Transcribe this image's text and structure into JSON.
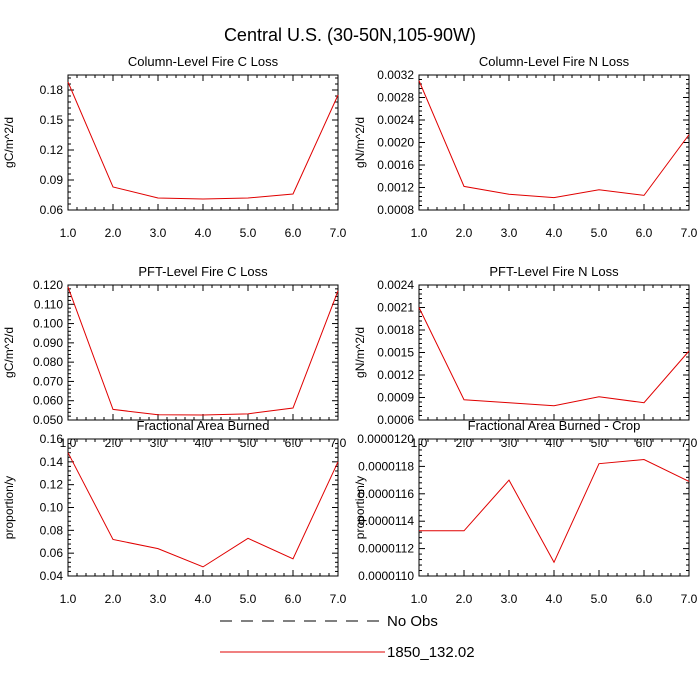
{
  "title": "Central U.S. (30-50N,105-90W)",
  "legend": [
    {
      "label": "No Obs",
      "style": "dashed",
      "color": "#000000"
    },
    {
      "label": "1850_132.02",
      "style": "solid",
      "color": "#e00000"
    }
  ],
  "chart_data": [
    {
      "type": "line",
      "title": "Column-Level Fire C Loss",
      "ylabel": "gC/m^2/d",
      "xlim": [
        1,
        7
      ],
      "ylim": [
        0.06,
        0.195
      ],
      "xticks": [
        "1.0",
        "2.0",
        "3.0",
        "4.0",
        "5.0",
        "6.0",
        "7.0"
      ],
      "yticks": [
        "0.06",
        "0.09",
        "0.12",
        "0.15",
        "0.18"
      ],
      "series": [
        {
          "color": "#e00000",
          "x": [
            1,
            2,
            3,
            4,
            5,
            6,
            7
          ],
          "y": [
            0.188,
            0.083,
            0.072,
            0.071,
            0.072,
            0.076,
            0.175
          ]
        }
      ]
    },
    {
      "type": "line",
      "title": "Column-Level Fire N Loss",
      "ylabel": "gN/m^2/d",
      "xlim": [
        1,
        7
      ],
      "ylim": [
        0.0008,
        0.0032
      ],
      "xticks": [
        "1.0",
        "2.0",
        "3.0",
        "4.0",
        "5.0",
        "6.0",
        "7.0"
      ],
      "yticks": [
        "0.0008",
        "0.0012",
        "0.0016",
        "0.0020",
        "0.0024",
        "0.0028",
        "0.0032"
      ],
      "series": [
        {
          "color": "#e00000",
          "x": [
            1,
            2,
            3,
            4,
            5,
            6,
            7
          ],
          "y": [
            0.0031,
            0.00122,
            0.00108,
            0.00102,
            0.00116,
            0.00106,
            0.00214
          ]
        }
      ]
    },
    {
      "type": "line",
      "title": "PFT-Level Fire C Loss",
      "ylabel": "gC/m^2/d",
      "xlim": [
        1,
        7
      ],
      "ylim": [
        0.05,
        0.12
      ],
      "xticks": [
        "1.0",
        "2.0",
        "3.0",
        "4.0",
        "5.0",
        "6.0",
        "7.0"
      ],
      "yticks": [
        "0.050",
        "0.060",
        "0.070",
        "0.080",
        "0.090",
        "0.100",
        "0.110",
        "0.120"
      ],
      "series": [
        {
          "color": "#e00000",
          "x": [
            1,
            2,
            3,
            4,
            5,
            6,
            7
          ],
          "y": [
            0.119,
            0.0555,
            0.0527,
            0.0526,
            0.0532,
            0.0562,
            0.117
          ]
        }
      ]
    },
    {
      "type": "line",
      "title": "PFT-Level Fire N Loss",
      "ylabel": "gN/m^2/d",
      "xlim": [
        1,
        7
      ],
      "ylim": [
        0.0006,
        0.0024
      ],
      "xticks": [
        "1.0",
        "2.0",
        "3.0",
        "4.0",
        "5.0",
        "6.0",
        "7.0"
      ],
      "yticks": [
        "0.0006",
        "0.0009",
        "0.0012",
        "0.0015",
        "0.0018",
        "0.0021",
        "0.0024"
      ],
      "series": [
        {
          "color": "#e00000",
          "x": [
            1,
            2,
            3,
            4,
            5,
            6,
            7
          ],
          "y": [
            0.0021,
            0.00087,
            0.00083,
            0.00079,
            0.00091,
            0.00083,
            0.00152
          ]
        }
      ]
    },
    {
      "type": "line",
      "title": "Fractional Area Burned",
      "ylabel": "proportion/y",
      "xlim": [
        1,
        7
      ],
      "ylim": [
        0.04,
        0.16
      ],
      "xticks": [
        "1.0",
        "2.0",
        "3.0",
        "4.0",
        "5.0",
        "6.0",
        "7.0"
      ],
      "yticks": [
        "0.04",
        "0.06",
        "0.08",
        "0.10",
        "0.12",
        "0.14",
        "0.16"
      ],
      "series": [
        {
          "color": "#e00000",
          "x": [
            1,
            2,
            3,
            4,
            5,
            6,
            7
          ],
          "y": [
            0.148,
            0.072,
            0.064,
            0.048,
            0.073,
            0.055,
            0.14
          ]
        }
      ]
    },
    {
      "type": "line",
      "title": "Fractional Area Burned - Crop",
      "ylabel": "proportion/y",
      "xlim": [
        1,
        7
      ],
      "ylim": [
        1.1e-05,
        1.2e-05
      ],
      "xticks": [
        "1.0",
        "2.0",
        "3.0",
        "4.0",
        "5.0",
        "6.0",
        "7.0"
      ],
      "yticks": [
        "0.0000110",
        "0.0000112",
        "0.0000114",
        "0.0000116",
        "0.0000118",
        "0.0000120"
      ],
      "series": [
        {
          "color": "#e00000",
          "x": [
            1,
            2,
            3,
            4,
            5,
            6,
            7
          ],
          "y": [
            1.133e-05,
            1.133e-05,
            1.17e-05,
            1.11e-05,
            1.182e-05,
            1.185e-05,
            1.169e-05
          ]
        }
      ]
    }
  ]
}
